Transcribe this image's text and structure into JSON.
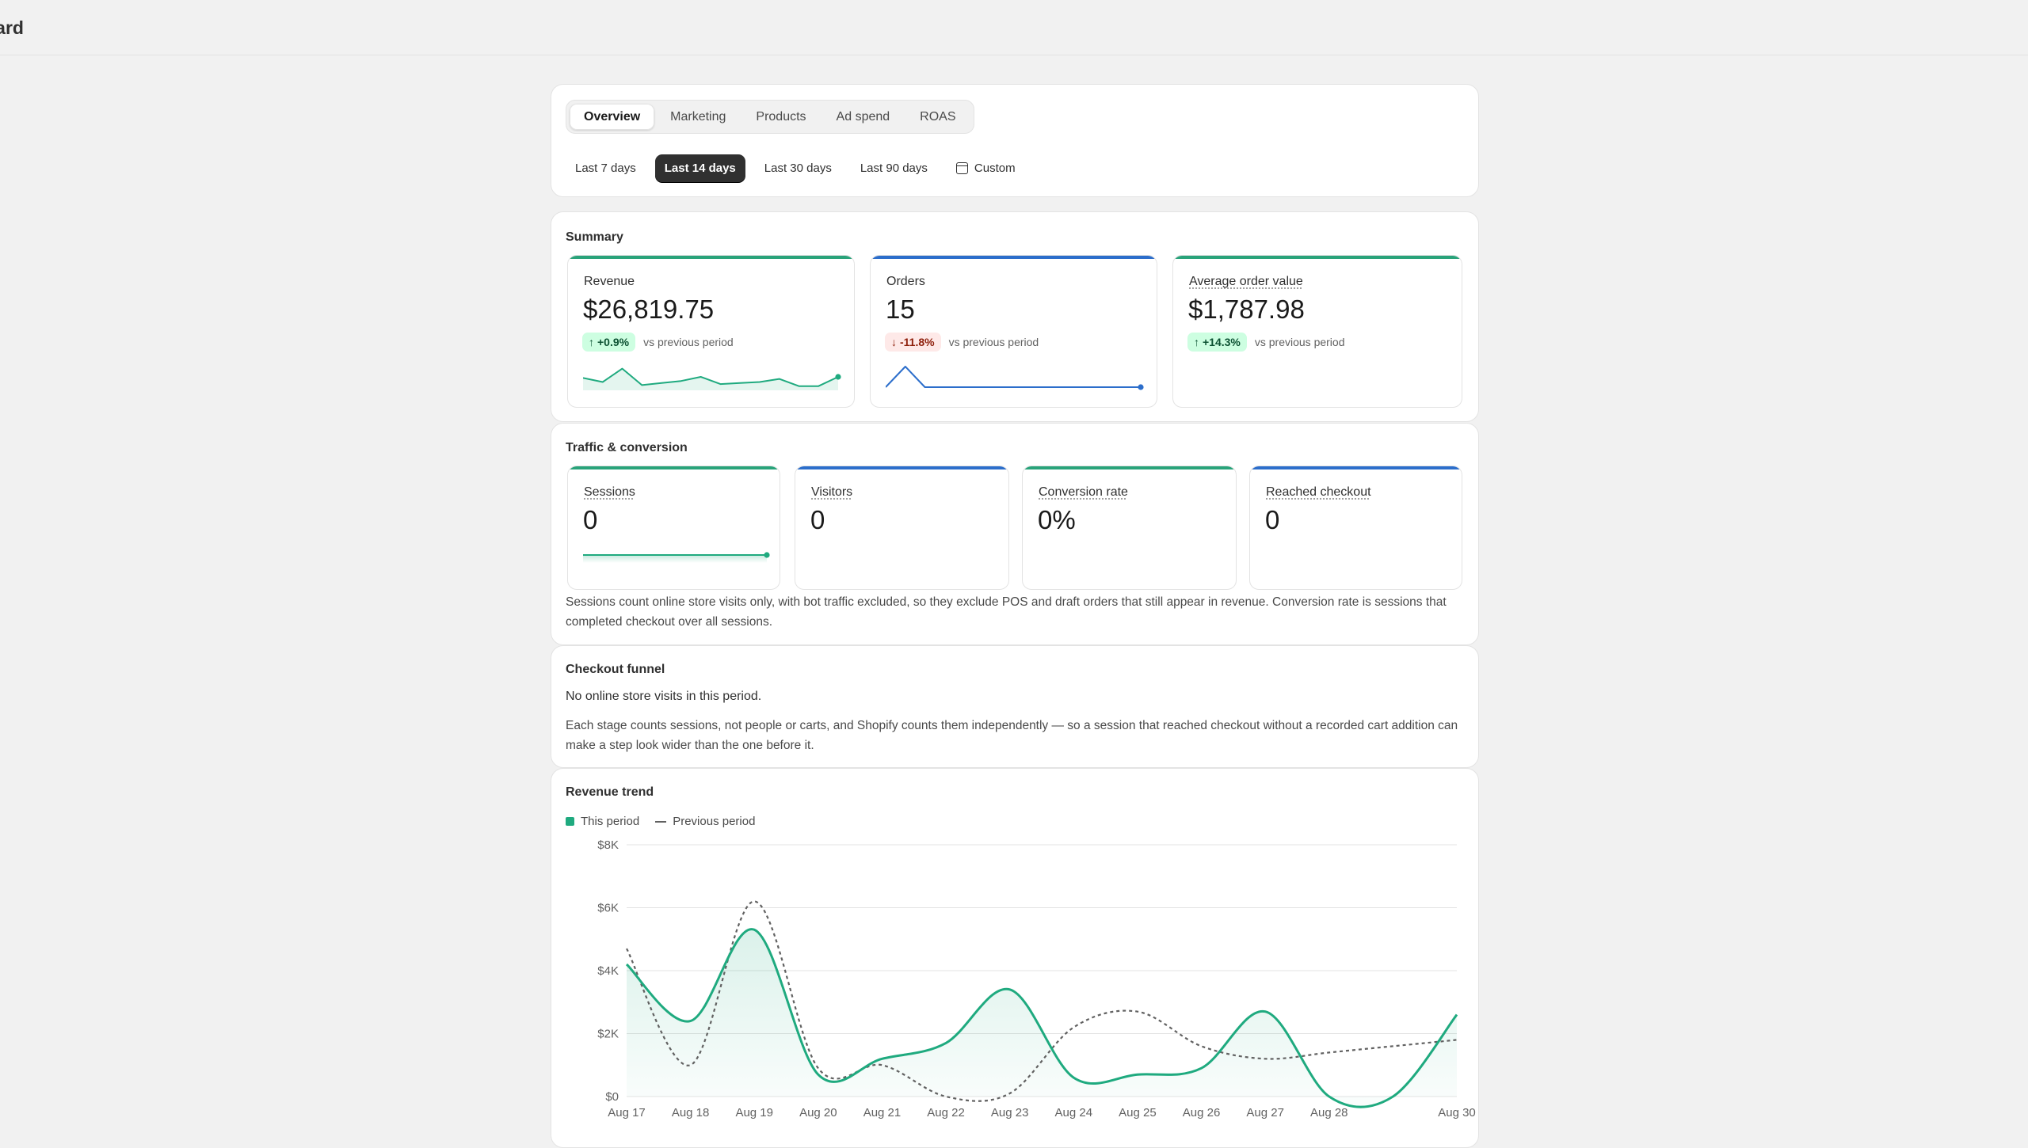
{
  "page": {
    "title": "nboard"
  },
  "tabs": [
    {
      "label": "Overview",
      "active": true
    },
    {
      "label": "Marketing",
      "active": false
    },
    {
      "label": "Products",
      "active": false
    },
    {
      "label": "Ad spend",
      "active": false
    },
    {
      "label": "ROAS",
      "active": false
    }
  ],
  "ranges": [
    {
      "label": "Last 7 days",
      "active": false
    },
    {
      "label": "Last 14 days",
      "active": true
    },
    {
      "label": "Last 30 days",
      "active": false
    },
    {
      "label": "Last 90 days",
      "active": false
    },
    {
      "label": "Custom",
      "active": false,
      "icon": "calendar-icon"
    }
  ],
  "summary": {
    "title": "Summary",
    "metrics": [
      {
        "label": "Revenue",
        "value": "$26,819.75",
        "delta": "+0.9%",
        "direction": "up",
        "compare": "vs previous period",
        "accent": "#29a37a",
        "spark": [
          0.45,
          0.25,
          0.9,
          0.1,
          0.2,
          0.3,
          0.5,
          0.15,
          0.2,
          0.25,
          0.4,
          0.05,
          0.05,
          0.5
        ]
      },
      {
        "label": "Orders",
        "value": "15",
        "delta": "-11.8%",
        "direction": "down",
        "compare": "vs previous period",
        "accent": "#2c6ecb",
        "spark": [
          0,
          1,
          0,
          0,
          0,
          0,
          0,
          0,
          0,
          0,
          0,
          0,
          0,
          0
        ]
      },
      {
        "label": "Average order value",
        "value": "$1,787.98",
        "delta": "+14.3%",
        "direction": "up",
        "compare": "vs previous period",
        "accent": "#29a37a"
      }
    ]
  },
  "traffic": {
    "title": "Traffic & conversion",
    "metrics": [
      {
        "label": "Sessions",
        "value": "0",
        "accent": "#29a37a",
        "spark": true
      },
      {
        "label": "Visitors",
        "value": "0",
        "accent": "#2c6ecb"
      },
      {
        "label": "Conversion rate",
        "value": "0%",
        "accent": "#29a37a"
      },
      {
        "label": "Reached checkout",
        "value": "0",
        "accent": "#2c6ecb"
      }
    ],
    "note": "Sessions count online store visits only, with bot traffic excluded, so they exclude POS and draft orders that still appear in revenue. Conversion rate is sessions that completed checkout over all sessions."
  },
  "funnel": {
    "title": "Checkout funnel",
    "empty": "No online store visits in this period.",
    "note": "Each stage counts sessions, not people or carts, and Shopify counts them independently — so a session that reached checkout without a recorded cart addition can make a step look wider than the one before it."
  },
  "trend": {
    "title": "Revenue trend",
    "legend": {
      "this_period": "This period",
      "previous_period": "Previous period"
    },
    "colors": {
      "this_period": "#1faa7f",
      "previous_period": "#616161"
    }
  },
  "chart_data": {
    "type": "area",
    "x": [
      "Aug 17",
      "Aug 18",
      "Aug 19",
      "Aug 20",
      "Aug 21",
      "Aug 22",
      "Aug 23",
      "Aug 24",
      "Aug 25",
      "Aug 26",
      "Aug 27",
      "Aug 28",
      "",
      "Aug 30"
    ],
    "series": [
      {
        "name": "This period",
        "values": [
          4200,
          2400,
          5300,
          700,
          1200,
          1700,
          3400,
          600,
          700,
          900,
          2700,
          0,
          0,
          2600
        ]
      },
      {
        "name": "Previous period",
        "values": [
          4700,
          1000,
          6200,
          900,
          1000,
          0,
          100,
          2200,
          2700,
          1600,
          1200,
          1400,
          1600,
          1800
        ]
      }
    ],
    "ylim": [
      0,
      8000
    ],
    "yticks": [
      0,
      2000,
      4000,
      6000,
      8000
    ],
    "ytick_labels": [
      "$0",
      "$2K",
      "$4K",
      "$6K",
      "$8K"
    ],
    "grid": true,
    "legend_position": "top-left"
  }
}
